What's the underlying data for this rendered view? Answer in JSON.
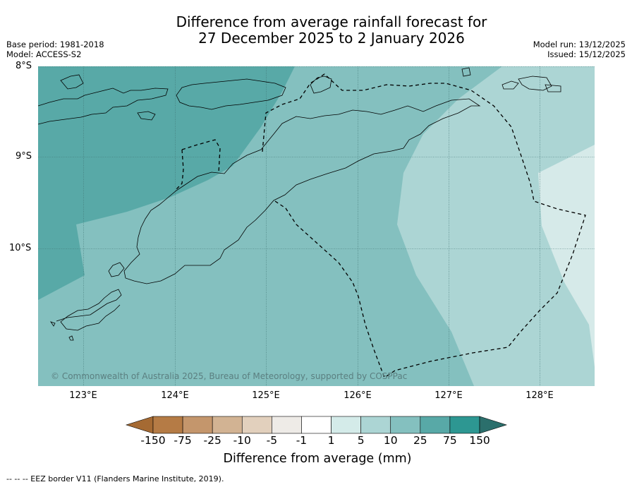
{
  "title": {
    "line1": "Difference from average rainfall forecast for",
    "line2": "27 December 2025 to 2 January 2026"
  },
  "meta_left": {
    "base_period": "Base period: 1981-2018",
    "model": "Model: ACCESS-S2"
  },
  "meta_right": {
    "model_run": "Model run: 13/12/2025",
    "issued": "Issued: 15/12/2025"
  },
  "map": {
    "lat_labels": [
      "8°S",
      "9°S",
      "10°S"
    ],
    "lon_labels": [
      "123°E",
      "124°E",
      "125°E",
      "126°E",
      "127°E",
      "128°E"
    ],
    "copyright": "© Commonwealth of Australia 2025, Bureau of Meteorology, supported by COSPPac",
    "region_colors": {
      "band_25_75": "#58a9a7",
      "band_10_25": "#84c0bf",
      "band_5_10": "#acd5d4",
      "band_1_5": "#d6eae9",
      "land_line": "#000000"
    }
  },
  "colorbar": {
    "title": "Difference from average (mm)",
    "tick_labels": [
      "-150",
      "-75",
      "-25",
      "-10",
      "-5",
      "-1",
      "1",
      "5",
      "10",
      "25",
      "75",
      "150"
    ],
    "colors": [
      "#a56a33",
      "#b57b45",
      "#c4966c",
      "#d2b393",
      "#e2d0bd",
      "#eeebe7",
      "#ffffff",
      "#d4ebe9",
      "#acd5d4",
      "#84c0bf",
      "#58a9a7",
      "#2d9792",
      "#2b6f6c"
    ]
  },
  "footer": "--  --  -- EEZ border V11 (Flanders Marine Institute, 2019)."
}
